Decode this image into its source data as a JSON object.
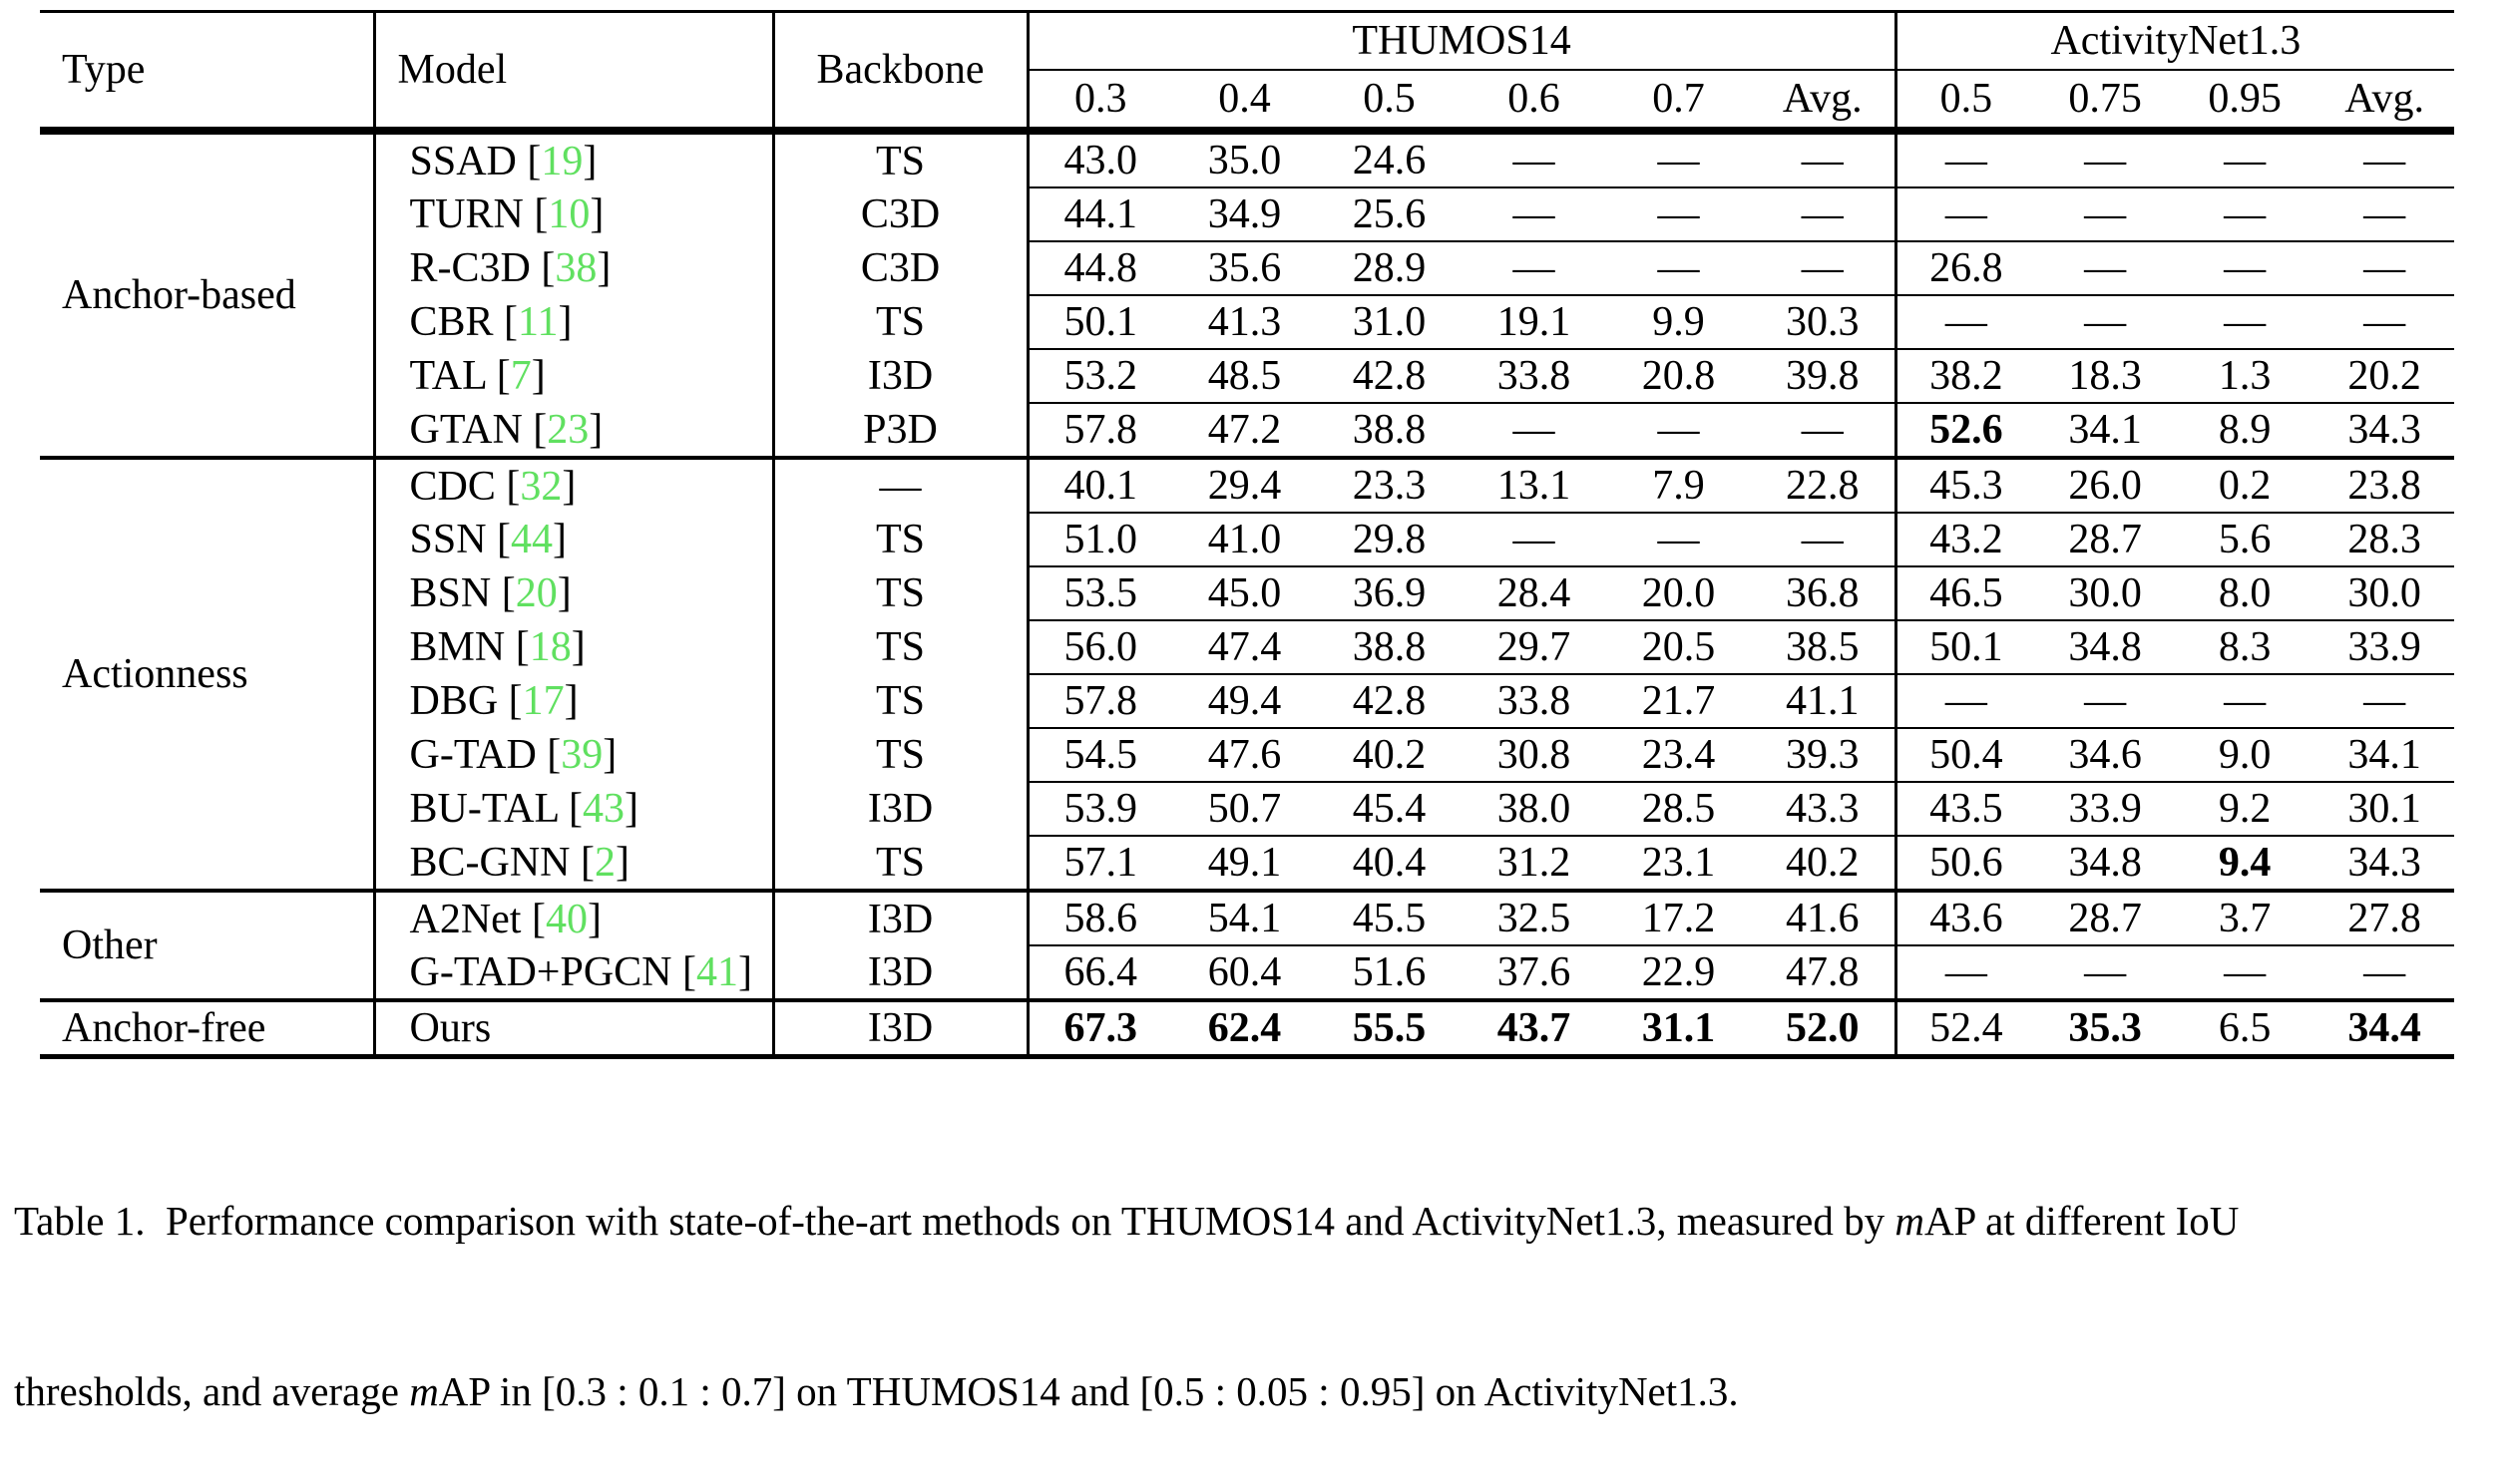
{
  "colors": {
    "citation_green": "#60E060",
    "text": "#000000",
    "background": "#ffffff"
  },
  "header": {
    "type": "Type",
    "model": "Model",
    "backbone": "Backbone",
    "thumos": {
      "label": "THUMOS14",
      "cols": [
        "0.3",
        "0.4",
        "0.5",
        "0.6",
        "0.7",
        "Avg."
      ]
    },
    "activitynet": {
      "label": "ActivityNet1.3",
      "cols": [
        "0.5",
        "0.75",
        "0.95",
        "Avg."
      ]
    }
  },
  "groups": [
    {
      "type_label": "Anchor-based",
      "rows": [
        {
          "model": "SSAD",
          "cite": "19",
          "backbone": "TS",
          "values": [
            "43.0",
            "35.0",
            "24.6",
            "—",
            "—",
            "—",
            "—",
            "—",
            "—",
            "—"
          ],
          "bold": []
        },
        {
          "model": "TURN",
          "cite": "10",
          "backbone": "C3D",
          "values": [
            "44.1",
            "34.9",
            "25.6",
            "—",
            "—",
            "—",
            "—",
            "—",
            "—",
            "—"
          ],
          "bold": []
        },
        {
          "model": "R-C3D",
          "cite": "38",
          "backbone": "C3D",
          "values": [
            "44.8",
            "35.6",
            "28.9",
            "—",
            "—",
            "—",
            "26.8",
            "—",
            "—",
            "—"
          ],
          "bold": []
        },
        {
          "model": "CBR",
          "cite": "11",
          "backbone": "TS",
          "values": [
            "50.1",
            "41.3",
            "31.0",
            "19.1",
            "9.9",
            "30.3",
            "—",
            "—",
            "—",
            "—"
          ],
          "bold": []
        },
        {
          "model": "TAL",
          "cite": "7",
          "backbone": "I3D",
          "values": [
            "53.2",
            "48.5",
            "42.8",
            "33.8",
            "20.8",
            "39.8",
            "38.2",
            "18.3",
            "1.3",
            "20.2"
          ],
          "bold": []
        },
        {
          "model": "GTAN",
          "cite": "23",
          "backbone": "P3D",
          "values": [
            "57.8",
            "47.2",
            "38.8",
            "—",
            "—",
            "—",
            "52.6",
            "34.1",
            "8.9",
            "34.3"
          ],
          "bold": [
            6
          ]
        }
      ]
    },
    {
      "type_label": "Actionness",
      "rows": [
        {
          "model": "CDC",
          "cite": "32",
          "backbone": "—",
          "values": [
            "40.1",
            "29.4",
            "23.3",
            "13.1",
            "7.9",
            "22.8",
            "45.3",
            "26.0",
            "0.2",
            "23.8"
          ],
          "bold": []
        },
        {
          "model": "SSN",
          "cite": "44",
          "backbone": "TS",
          "values": [
            "51.0",
            "41.0",
            "29.8",
            "—",
            "—",
            "—",
            "43.2",
            "28.7",
            "5.6",
            "28.3"
          ],
          "bold": []
        },
        {
          "model": "BSN",
          "cite": "20",
          "backbone": "TS",
          "values": [
            "53.5",
            "45.0",
            "36.9",
            "28.4",
            "20.0",
            "36.8",
            "46.5",
            "30.0",
            "8.0",
            "30.0"
          ],
          "bold": []
        },
        {
          "model": "BMN",
          "cite": "18",
          "backbone": "TS",
          "values": [
            "56.0",
            "47.4",
            "38.8",
            "29.7",
            "20.5",
            "38.5",
            "50.1",
            "34.8",
            "8.3",
            "33.9"
          ],
          "bold": []
        },
        {
          "model": "DBG",
          "cite": "17",
          "backbone": "TS",
          "values": [
            "57.8",
            "49.4",
            "42.8",
            "33.8",
            "21.7",
            "41.1",
            "—",
            "—",
            "—",
            "—"
          ],
          "bold": []
        },
        {
          "model": "G-TAD",
          "cite": "39",
          "backbone": "TS",
          "values": [
            "54.5",
            "47.6",
            "40.2",
            "30.8",
            "23.4",
            "39.3",
            "50.4",
            "34.6",
            "9.0",
            "34.1"
          ],
          "bold": []
        },
        {
          "model": "BU-TAL",
          "cite": "43",
          "backbone": "I3D",
          "values": [
            "53.9",
            "50.7",
            "45.4",
            "38.0",
            "28.5",
            "43.3",
            "43.5",
            "33.9",
            "9.2",
            "30.1"
          ],
          "bold": []
        },
        {
          "model": "BC-GNN",
          "cite": "2",
          "backbone": "TS",
          "values": [
            "57.1",
            "49.1",
            "40.4",
            "31.2",
            "23.1",
            "40.2",
            "50.6",
            "34.8",
            "9.4",
            "34.3"
          ],
          "bold": [
            8
          ]
        }
      ]
    },
    {
      "type_label": "Other",
      "rows": [
        {
          "model": "A2Net",
          "cite": "40",
          "backbone": "I3D",
          "values": [
            "58.6",
            "54.1",
            "45.5",
            "32.5",
            "17.2",
            "41.6",
            "43.6",
            "28.7",
            "3.7",
            "27.8"
          ],
          "bold": []
        },
        {
          "model": "G-TAD+PGCN",
          "cite": "41",
          "backbone": "I3D",
          "values": [
            "66.4",
            "60.4",
            "51.6",
            "37.6",
            "22.9",
            "47.8",
            "—",
            "—",
            "—",
            "—"
          ],
          "bold": []
        }
      ]
    },
    {
      "type_label": "Anchor-free",
      "rows": [
        {
          "model": "Ours",
          "cite": null,
          "backbone": "I3D",
          "values": [
            "67.3",
            "62.4",
            "55.5",
            "43.7",
            "31.1",
            "52.0",
            "52.4",
            "35.3",
            "6.5",
            "34.4"
          ],
          "bold": [
            0,
            1,
            2,
            3,
            4,
            5,
            7,
            9
          ]
        }
      ]
    }
  ],
  "caption": {
    "line1": {
      "t1": "Table 1.  Performance comparison with state-of-the-art methods on THUMOS14 and ActivityNet1.3, measured by ",
      "m": "m",
      "t2": "AP at different IoU"
    },
    "line2": {
      "t1": "thresholds, and average ",
      "m": "m",
      "t2": "AP in [0.3 : 0.1 : 0.7] on THUMOS14 and [0.5 : 0.05 : 0.95] on ActivityNet1.3."
    }
  }
}
